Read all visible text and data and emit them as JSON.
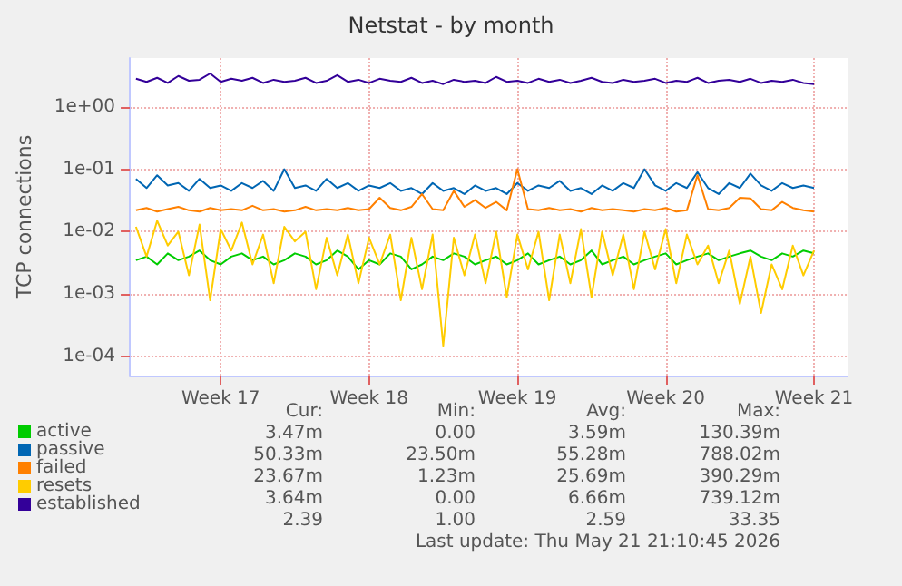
{
  "chart_data": {
    "type": "line",
    "title": "Netstat - by month",
    "ylabel": "TCP connections",
    "x": [
      "2026-04-19T12:00",
      "2026-04-20T00:00",
      "2026-04-20T12:00",
      "2026-04-21T00:00",
      "2026-04-21T12:00",
      "2026-04-22T00:00",
      "2026-04-22T12:00",
      "2026-04-23T00:00",
      "2026-04-23T12:00",
      "2026-04-24T00:00",
      "2026-04-24T12:00",
      "2026-04-25T00:00",
      "2026-04-25T12:00",
      "2026-04-26T00:00",
      "2026-04-26T12:00",
      "2026-04-27T00:00",
      "2026-04-27T12:00",
      "2026-04-28T00:00",
      "2026-04-28T12:00",
      "2026-04-29T00:00",
      "2026-04-29T12:00",
      "2026-04-30T00:00",
      "2026-04-30T12:00",
      "2026-05-01T00:00",
      "2026-05-01T12:00",
      "2026-05-02T00:00",
      "2026-05-02T12:00",
      "2026-05-03T00:00",
      "2026-05-03T12:00",
      "2026-05-04T00:00",
      "2026-05-04T12:00",
      "2026-05-05T00:00",
      "2026-05-05T12:00",
      "2026-05-06T00:00",
      "2026-05-06T12:00",
      "2026-05-07T00:00",
      "2026-05-07T12:00",
      "2026-05-08T00:00",
      "2026-05-08T12:00",
      "2026-05-09T00:00",
      "2026-05-09T12:00",
      "2026-05-10T00:00",
      "2026-05-10T12:00",
      "2026-05-11T00:00",
      "2026-05-11T12:00",
      "2026-05-12T00:00",
      "2026-05-12T12:00",
      "2026-05-13T00:00",
      "2026-05-13T12:00",
      "2026-05-14T00:00",
      "2026-05-14T12:00",
      "2026-05-15T00:00",
      "2026-05-15T12:00",
      "2026-05-16T00:00",
      "2026-05-16T12:00",
      "2026-05-17T00:00",
      "2026-05-17T12:00",
      "2026-05-18T00:00",
      "2026-05-18T12:00",
      "2026-05-19T00:00",
      "2026-05-19T12:00",
      "2026-05-20T00:00",
      "2026-05-20T12:00",
      "2026-05-21T00:00",
      "2026-05-21T12:00"
    ],
    "series": [
      {
        "name": "active",
        "color": "#00cc00",
        "values": [
          0.0035,
          0.004,
          0.003,
          0.0045,
          0.0035,
          0.004,
          0.005,
          0.0035,
          0.003,
          0.004,
          0.0045,
          0.0035,
          0.004,
          0.003,
          0.0035,
          0.0045,
          0.004,
          0.003,
          0.0035,
          0.005,
          0.004,
          0.0025,
          0.0035,
          0.003,
          0.0045,
          0.004,
          0.0025,
          0.003,
          0.004,
          0.0035,
          0.0045,
          0.004,
          0.003,
          0.0035,
          0.004,
          0.003,
          0.0035,
          0.0045,
          0.003,
          0.0035,
          0.004,
          0.003,
          0.0035,
          0.005,
          0.003,
          0.0035,
          0.004,
          0.003,
          0.0035,
          0.004,
          0.0045,
          0.003,
          0.0035,
          0.004,
          0.0045,
          0.0035,
          0.004,
          0.0045,
          0.005,
          0.004,
          0.0035,
          0.0045,
          0.004,
          0.005,
          0.0045
        ]
      },
      {
        "name": "passive",
        "color": "#0066b3",
        "values": [
          0.07,
          0.05,
          0.08,
          0.055,
          0.06,
          0.045,
          0.07,
          0.05,
          0.055,
          0.045,
          0.06,
          0.05,
          0.065,
          0.045,
          0.1,
          0.05,
          0.055,
          0.045,
          0.07,
          0.05,
          0.06,
          0.045,
          0.055,
          0.05,
          0.06,
          0.045,
          0.05,
          0.04,
          0.06,
          0.045,
          0.05,
          0.04,
          0.055,
          0.045,
          0.05,
          0.04,
          0.06,
          0.045,
          0.055,
          0.05,
          0.065,
          0.045,
          0.05,
          0.04,
          0.055,
          0.045,
          0.06,
          0.05,
          0.1,
          0.055,
          0.045,
          0.06,
          0.05,
          0.09,
          0.05,
          0.04,
          0.06,
          0.05,
          0.085,
          0.055,
          0.045,
          0.06,
          0.05,
          0.055,
          0.05
        ]
      },
      {
        "name": "failed",
        "color": "#ff8000",
        "values": [
          0.022,
          0.024,
          0.021,
          0.023,
          0.025,
          0.022,
          0.021,
          0.024,
          0.022,
          0.023,
          0.022,
          0.026,
          0.022,
          0.023,
          0.021,
          0.022,
          0.025,
          0.022,
          0.023,
          0.022,
          0.024,
          0.022,
          0.023,
          0.035,
          0.024,
          0.022,
          0.025,
          0.04,
          0.023,
          0.022,
          0.045,
          0.025,
          0.032,
          0.024,
          0.03,
          0.022,
          0.1,
          0.023,
          0.022,
          0.024,
          0.022,
          0.023,
          0.021,
          0.024,
          0.022,
          0.023,
          0.022,
          0.021,
          0.023,
          0.022,
          0.024,
          0.021,
          0.022,
          0.08,
          0.023,
          0.022,
          0.024,
          0.035,
          0.034,
          0.023,
          0.022,
          0.03,
          0.024,
          0.022,
          0.021
        ]
      },
      {
        "name": "resets",
        "color": "#ffcc00",
        "values": [
          0.012,
          0.004,
          0.015,
          0.006,
          0.01,
          0.002,
          0.013,
          0.0008,
          0.011,
          0.005,
          0.014,
          0.003,
          0.009,
          0.0015,
          0.012,
          0.007,
          0.01,
          0.0012,
          0.008,
          0.002,
          0.009,
          0.0015,
          0.008,
          0.003,
          0.009,
          0.0008,
          0.008,
          0.0012,
          0.009,
          0.00015,
          0.008,
          0.002,
          0.009,
          0.0015,
          0.01,
          0.0009,
          0.009,
          0.0025,
          0.01,
          0.0008,
          0.009,
          0.0015,
          0.011,
          0.0009,
          0.01,
          0.002,
          0.009,
          0.0012,
          0.01,
          0.0025,
          0.011,
          0.0015,
          0.009,
          0.003,
          0.006,
          0.0015,
          0.005,
          0.0007,
          0.004,
          0.0005,
          0.003,
          0.0012,
          0.006,
          0.002,
          0.005
        ]
      },
      {
        "name": "established",
        "color": "#330099",
        "values": [
          2.8,
          2.5,
          2.9,
          2.4,
          3.1,
          2.6,
          2.7,
          3.4,
          2.5,
          2.8,
          2.6,
          2.9,
          2.4,
          2.7,
          2.5,
          2.6,
          2.9,
          2.4,
          2.6,
          3.2,
          2.5,
          2.7,
          2.4,
          2.8,
          2.6,
          2.5,
          2.9,
          2.4,
          2.6,
          2.3,
          2.7,
          2.5,
          2.6,
          2.4,
          3.0,
          2.5,
          2.6,
          2.4,
          2.8,
          2.5,
          2.7,
          2.4,
          2.6,
          2.9,
          2.5,
          2.4,
          2.7,
          2.5,
          2.6,
          2.8,
          2.4,
          2.6,
          2.5,
          2.9,
          2.4,
          2.6,
          2.7,
          2.5,
          2.8,
          2.4,
          2.6,
          2.5,
          2.7,
          2.4,
          2.3
        ]
      }
    ],
    "log": true,
    "xlim": [
      "2026-04-19T05:00",
      "2026-05-23T02:00"
    ],
    "xticks": [
      {
        "value": "2026-04-23T12:00",
        "label": "Week 17"
      },
      {
        "value": "2026-04-30T12:00",
        "label": "Week 18"
      },
      {
        "value": "2026-05-07T12:00",
        "label": "Week 19"
      },
      {
        "value": "2026-05-14T12:00",
        "label": "Week 20"
      },
      {
        "value": "2026-05-21T12:00",
        "label": "Week 21"
      }
    ],
    "ylim": [
      5e-05,
      6
    ],
    "yticks": [
      {
        "value": 0.0001,
        "label": "1e-04"
      },
      {
        "value": 0.001,
        "label": "1e-03"
      },
      {
        "value": 0.01,
        "label": "1e-02"
      },
      {
        "value": 0.1,
        "label": "1e-01"
      },
      {
        "value": 1,
        "label": "1e+00"
      }
    ],
    "grid": true,
    "legend": "bottom left",
    "line_style": "solid",
    "marker": "none",
    "annotations": [
      "Cur:",
      "Min:",
      "Avg:",
      "Max:",
      "3.47m",
      "0.00",
      "3.59m",
      "130.39m",
      "50.33m",
      "23.50m",
      "55.28m",
      "788.02m",
      "23.67m",
      "1.23m",
      "25.69m",
      "390.29m",
      "3.64m",
      "0.00",
      "6.66m",
      "739.12m",
      "2.39",
      "1.00",
      "2.59",
      "33.35",
      "Last update: Thu May 21 21:10:45 2026"
    ]
  }
}
